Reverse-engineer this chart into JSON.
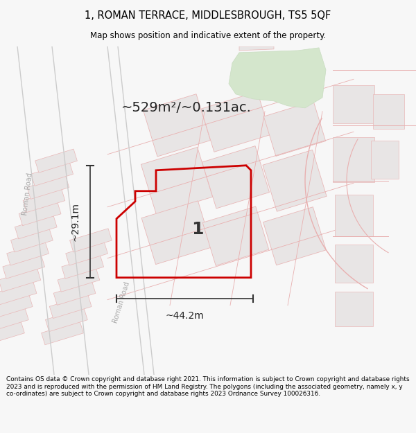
{
  "title_line1": "1, ROMAN TERRACE, MIDDLESBROUGH, TS5 5QF",
  "title_line2": "Map shows position and indicative extent of the property.",
  "area_text": "~529m²/~0.131ac.",
  "dim_width": "~44.2m",
  "dim_height": "~29.1m",
  "plot_number": "1",
  "footer": "Contains OS data © Crown copyright and database right 2021. This information is subject to Crown copyright and database rights 2023 and is reproduced with the permission of HM Land Registry. The polygons (including the associated geometry, namely x, y co-ordinates) are subject to Crown copyright and database rights 2023 Ordnance Survey 100026316.",
  "bg_color": "#f7f7f7",
  "map_bg": "#f8f8f8",
  "plot_color": "#e8e5e5",
  "plot_edge": "#e8b8b8",
  "green_fill": "#d4e6cc",
  "green_edge": "#c8dcc0",
  "property_edge": "#cc0000",
  "road_line_color": "#e8b0b0",
  "road_label_color": "#aaaaaa",
  "dim_line_color": "#333333",
  "text_color": "#222222"
}
